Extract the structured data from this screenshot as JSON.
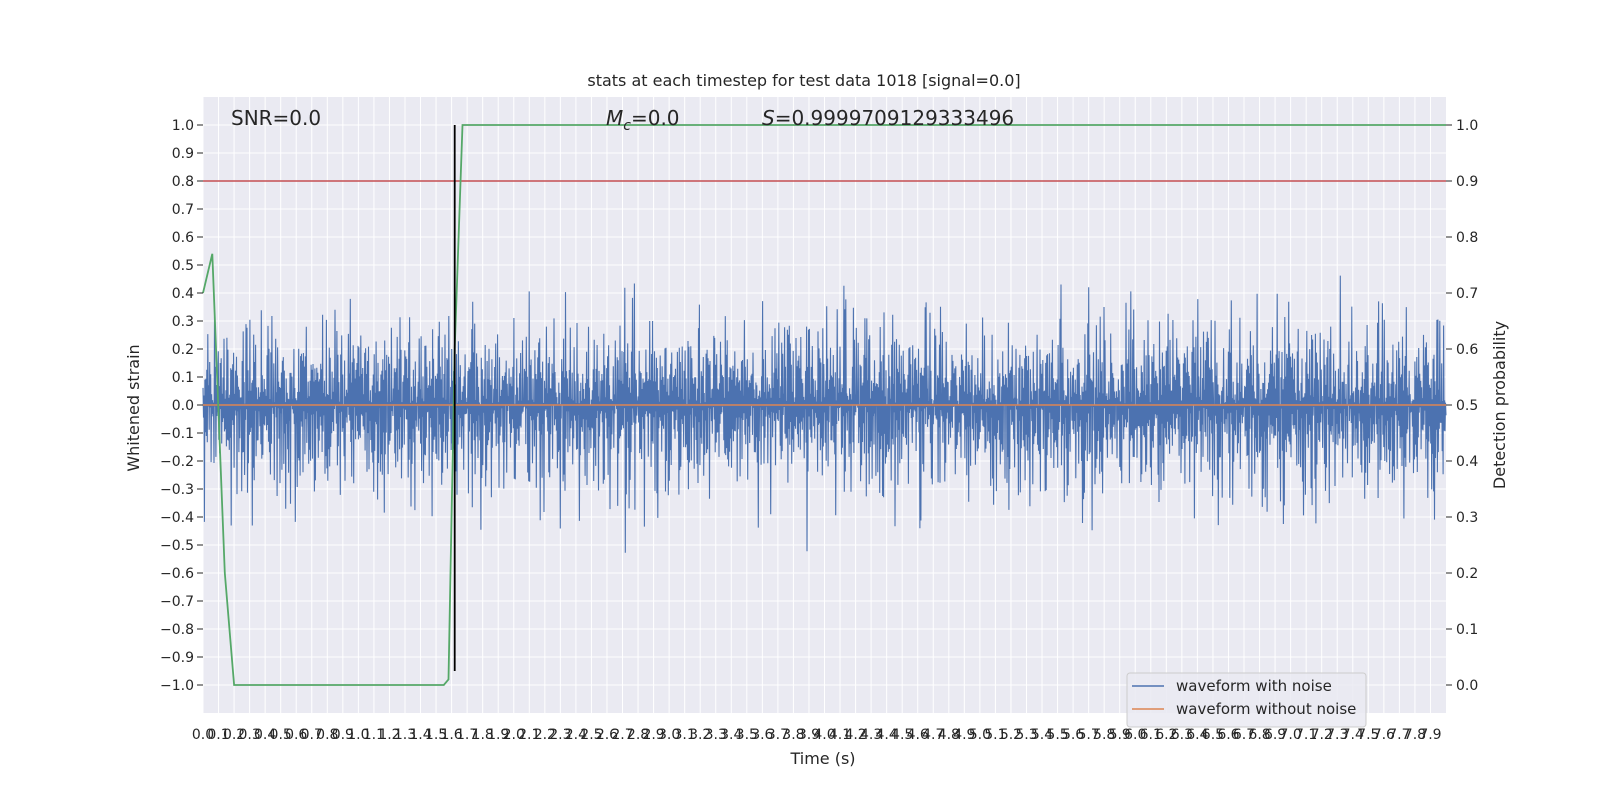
{
  "chart_data": {
    "type": "line",
    "title": "stats at each timestep for test data 1018 [signal=0.0]",
    "xlabel": "Time (s)",
    "ylabel": "Whitened strain",
    "ylabel_right": "Detection probability",
    "xlim": [
      0.0,
      8.0
    ],
    "ylim": [
      -1.1,
      1.1
    ],
    "ylim_right": [
      -0.05,
      1.05
    ],
    "xticks": [
      "0.0",
      "0.1",
      "0.2",
      "0.3",
      "0.4",
      "0.5",
      "0.6",
      "0.7",
      "0.8",
      "0.9",
      "1.0",
      "1.1",
      "1.2",
      "1.3",
      "1.4",
      "1.5",
      "1.6",
      "1.7",
      "1.8",
      "1.9",
      "2.0",
      "2.1",
      "2.2",
      "2.3",
      "2.4",
      "2.5",
      "2.6",
      "2.7",
      "2.8",
      "2.9",
      "3.0",
      "3.1",
      "3.2",
      "3.3",
      "3.4",
      "3.5",
      "3.6",
      "3.7",
      "3.8",
      "3.9",
      "4.0",
      "4.1",
      "4.2",
      "4.3",
      "4.4",
      "4.5",
      "4.6",
      "4.7",
      "4.8",
      "4.9",
      "5.0",
      "5.1",
      "5.2",
      "5.3",
      "5.4",
      "5.5",
      "5.6",
      "5.7",
      "5.8",
      "5.9",
      "6.0",
      "6.1",
      "6.2",
      "6.3",
      "6.4",
      "6.5",
      "6.6",
      "6.7",
      "6.8",
      "6.9",
      "7.0",
      "7.1",
      "7.2",
      "7.3",
      "7.4",
      "7.5",
      "7.6",
      "7.7",
      "7.8",
      "7.9"
    ],
    "yticks": [
      "1.0",
      "0.9",
      "0.8",
      "0.7",
      "0.6",
      "0.5",
      "0.4",
      "0.3",
      "0.2",
      "0.1",
      "0.0",
      "−0.1",
      "−0.2",
      "−0.3",
      "−0.4",
      "−0.5",
      "−0.6",
      "−0.7",
      "−0.8",
      "−0.9",
      "−1.0"
    ],
    "yticks_right": [
      "1.0",
      "0.9",
      "0.8",
      "0.7",
      "0.6",
      "0.5",
      "0.4",
      "0.3",
      "0.2",
      "0.1",
      "0.0"
    ],
    "annotations": {
      "snr": "SNR=0.0",
      "mc_symbol": "M",
      "mc_subscript": "c",
      "mc_value": "=0.0",
      "s_symbol": "S",
      "s_value": "=0.9999709129333496"
    },
    "series": [
      {
        "name": "waveform with noise",
        "color": "#4c72b0",
        "kind": "noise",
        "amplitude_envelope": [
          -0.95,
          1.0
        ]
      },
      {
        "name": "waveform without noise",
        "color": "#dd8452",
        "kind": "constant",
        "value": 0.0
      },
      {
        "color": "#55a868",
        "axis": "right",
        "x": [
          0.0,
          0.06,
          0.14,
          0.2,
          1.45,
          1.55,
          1.58,
          1.62,
          1.67,
          8.0
        ],
        "y": [
          0.7,
          0.77,
          0.2,
          0.0,
          0.0,
          0.0,
          0.01,
          0.6,
          1.0,
          1.0
        ]
      }
    ],
    "hlines": [
      {
        "y": 0.8,
        "color": "#c44e52"
      }
    ],
    "vlines": [
      {
        "x": 1.62,
        "color": "#000000",
        "ymin": -0.95,
        "ymax": 1.0
      }
    ],
    "grid": true,
    "legend_placement": "lower-right",
    "colors": {
      "background": "#eaeaf2",
      "grid": "#ffffff"
    }
  }
}
